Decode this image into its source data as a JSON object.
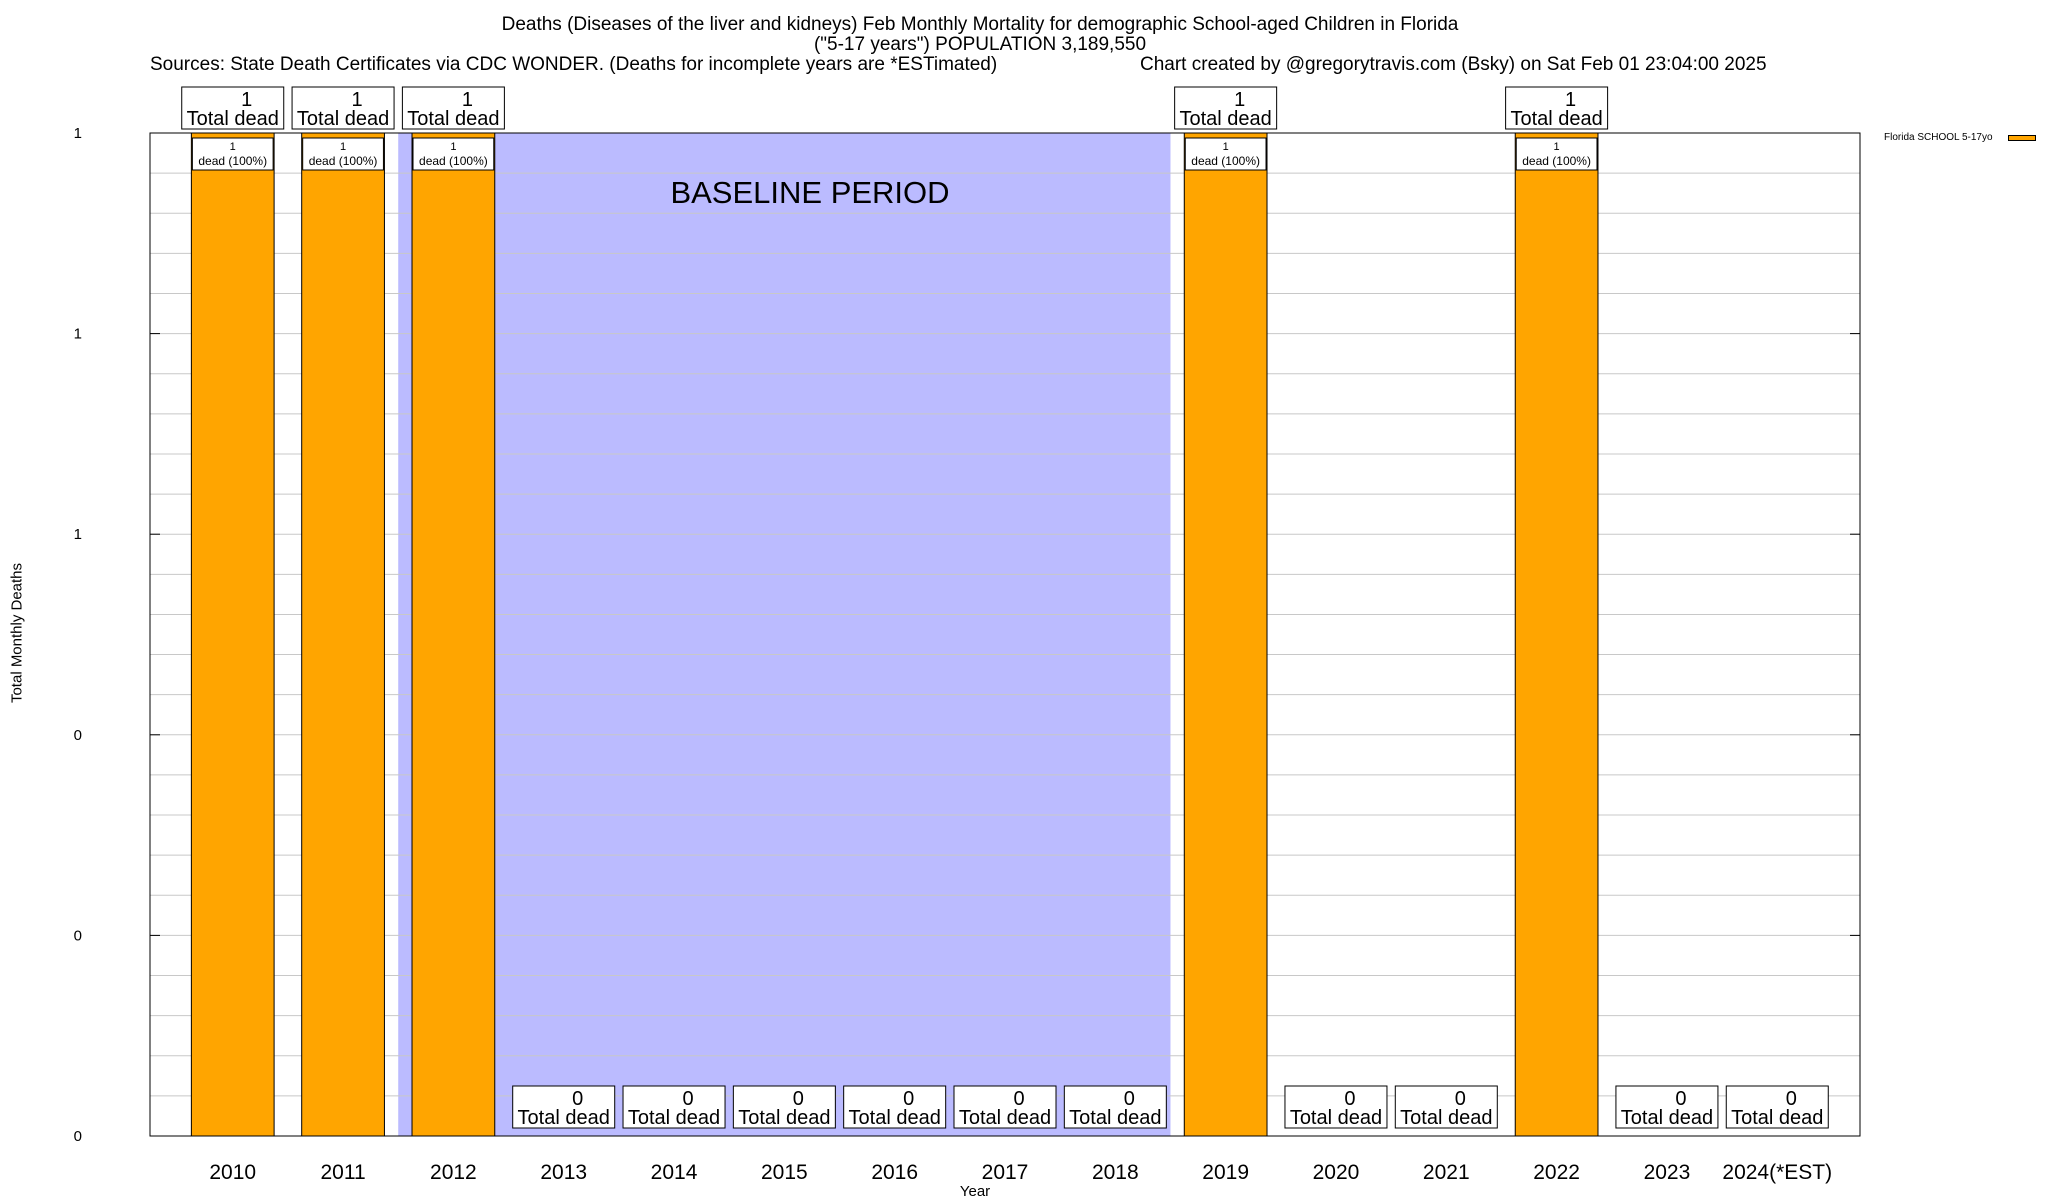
{
  "chart_data": {
    "type": "bar",
    "title": "Deaths (Diseases of the liver and kidneys) Feb Monthly Mortality for demographic School-aged Children in Florida",
    "subtitle": "(\"5-17 years\") POPULATION 3,189,550",
    "sources": "Sources: State Death Certificates via CDC WONDER. (Deaths for incomplete years are *ESTimated)",
    "credit": "Chart created by @gregorytravis.com (Bsky) on Sat Feb 01 23:04:00 2025",
    "xlabel": "Year",
    "ylabel": "Total Monthly Deaths",
    "categories": [
      "2010",
      "2011",
      "2012",
      "2013",
      "2014",
      "2015",
      "2016",
      "2017",
      "2018",
      "2019",
      "2020",
      "2021",
      "2022",
      "2023",
      "2024(*EST)"
    ],
    "series": [
      {
        "name": "Florida SCHOOL 5-17yo",
        "values": [
          1,
          1,
          1,
          0,
          0,
          0,
          0,
          0,
          0,
          1,
          0,
          0,
          1,
          0,
          0
        ]
      }
    ],
    "total_label_suffix": "Total dead",
    "bar_label_texts": [
      "dead (100%)",
      "dead (100%)",
      "dead (100%)",
      "",
      "",
      "",
      "",
      "",
      "",
      "dead (100%)",
      "",
      "",
      "dead (100%)",
      "",
      ""
    ],
    "ylim": [
      0,
      1
    ],
    "y_tick_labels": [
      "0",
      "0",
      "0",
      "1",
      "1",
      "1"
    ],
    "annotation": "BASELINE PERIOD",
    "baseline_period": [
      "2012",
      "2019"
    ],
    "grid": true,
    "legend_position": "top-right",
    "colors": {
      "bar": "#ffa500",
      "baseline_shade": "#bbbbff",
      "grid": "#c8c8c8"
    }
  }
}
